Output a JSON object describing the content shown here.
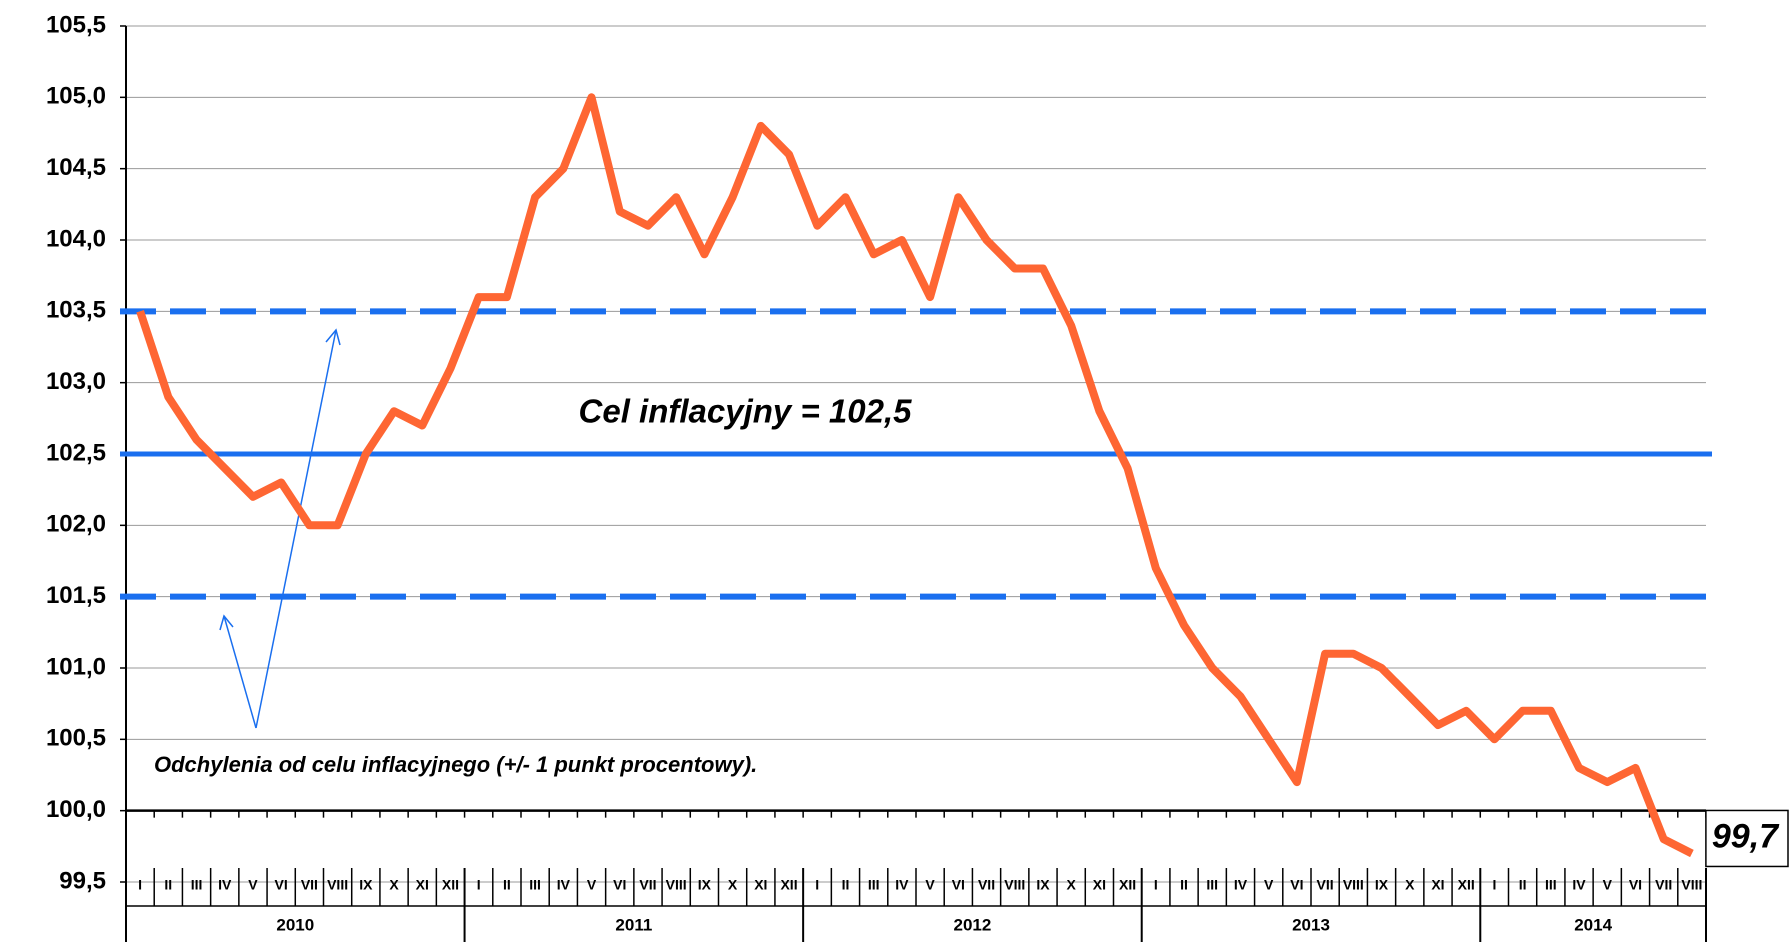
{
  "chart_data": {
    "type": "line",
    "annotation_target": "Cel inflacyjny = 102,5",
    "annotation_band": "Odchylenia od celu inflacyjnego (+/- 1 punkt procentowy).",
    "categories": [
      "I",
      "II",
      "III",
      "IV",
      "V",
      "VI",
      "VII",
      "VIII",
      "IX",
      "X",
      "XI",
      "XII",
      "I",
      "II",
      "III",
      "IV",
      "V",
      "VI",
      "VII",
      "VIII",
      "IX",
      "X",
      "XI",
      "XII",
      "I",
      "II",
      "III",
      "IV",
      "V",
      "VI",
      "VII",
      "VIII",
      "IX",
      "X",
      "XI",
      "XII",
      "I",
      "II",
      "III",
      "IV",
      "V",
      "VI",
      "VII",
      "VIII",
      "IX",
      "X",
      "XI",
      "XII",
      "I",
      "II",
      "III",
      "IV",
      "V",
      "VI",
      "VII",
      "VIII"
    ],
    "years": [
      "2010",
      "2011",
      "2012",
      "2013",
      "2014"
    ],
    "series": [
      {
        "color": "#fe6633",
        "values": [
          103.5,
          102.9,
          102.6,
          102.4,
          102.2,
          102.3,
          102.0,
          102.0,
          102.5,
          102.8,
          102.7,
          103.1,
          103.6,
          103.6,
          104.3,
          104.5,
          105.0,
          104.2,
          104.1,
          104.3,
          103.9,
          104.3,
          104.8,
          104.6,
          104.1,
          104.3,
          103.9,
          104.0,
          103.6,
          104.3,
          104.0,
          103.8,
          103.8,
          103.4,
          102.8,
          102.4,
          101.7,
          101.3,
          101.0,
          100.8,
          100.5,
          100.2,
          101.1,
          101.1,
          101.0,
          100.8,
          100.6,
          100.7,
          100.5,
          100.7,
          100.7,
          100.3,
          100.2,
          100.3,
          99.8,
          99.7
        ],
        "value_labels": [
          null,
          null,
          null,
          null,
          null,
          null,
          null,
          null,
          null,
          null,
          null,
          null,
          null,
          null,
          null,
          null,
          null,
          null,
          null,
          null,
          null,
          null,
          null,
          null,
          null,
          null,
          null,
          null,
          null,
          null,
          null,
          null,
          null,
          null,
          null,
          null,
          null,
          null,
          null,
          null,
          null,
          null,
          null,
          null,
          null,
          null,
          null,
          null,
          null,
          null,
          null,
          null,
          null,
          null,
          null,
          "99,7"
        ]
      }
    ],
    "reference_lines": [
      {
        "value": 103.5,
        "dashed": true
      },
      {
        "value": 102.5,
        "dashed": false
      },
      {
        "value": 101.5,
        "dashed": true
      }
    ],
    "reference_color": "#1a6fef",
    "ylim": [
      99.5,
      105.5
    ],
    "yticks": [
      {
        "value": 99.5,
        "label": "99,5"
      },
      {
        "value": 100.0,
        "label": "100,0"
      },
      {
        "value": 100.5,
        "label": "100,5"
      },
      {
        "value": 101.0,
        "label": "101,0"
      },
      {
        "value": 101.5,
        "label": "101,5"
      },
      {
        "value": 102.0,
        "label": "102,0"
      },
      {
        "value": 102.5,
        "label": "102,5"
      },
      {
        "value": 103.0,
        "label": "103,0"
      },
      {
        "value": 103.5,
        "label": "103,5"
      },
      {
        "value": 104.0,
        "label": "104,0"
      },
      {
        "value": 104.5,
        "label": "104,5"
      },
      {
        "value": 105.0,
        "label": "105,0"
      },
      {
        "value": 105.5,
        "label": "105,5"
      }
    ],
    "x_axis_at": 100.0,
    "grid": true
  }
}
